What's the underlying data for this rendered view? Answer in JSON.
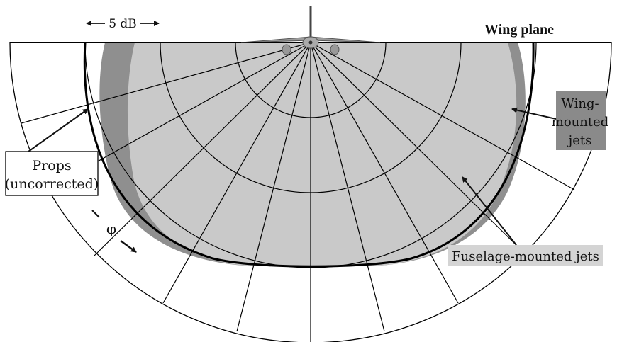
{
  "diagram": {
    "dimension_label": "5 dB",
    "reference_label": "Wing plane",
    "angle_symbol": "φ",
    "props_label_line1": "Props",
    "props_label_line2": "(uncorrected)",
    "wing_jets_line1": "Wing-",
    "wing_jets_line2": "mounted",
    "wing_jets_line3": "jets",
    "fuselage_jets_label": "Fuselage-mounted jets"
  },
  "colors": {
    "wing_jets_fill": "#8f8f8f",
    "fuselage_jets_fill": "#c9c9c9",
    "props_curve": "#000000",
    "label_box_light": "#d4d4d4",
    "label_box_dark": "#8a8a8a"
  },
  "icons": [
    "airplane-icon",
    "arrow-icon"
  ]
}
